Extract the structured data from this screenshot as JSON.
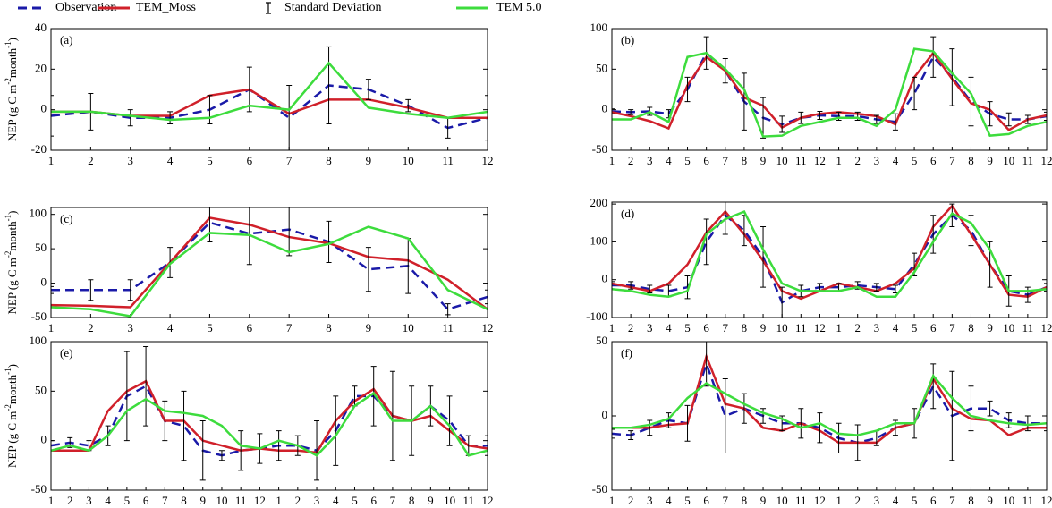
{
  "chart_data": [
    {
      "type": "line",
      "label": "(a)",
      "ylabel": [
        "NEP (g C m",
        "-2",
        "month",
        "-1",
        ")"
      ],
      "categories": [
        "1",
        "2",
        "3",
        "4",
        "5",
        "6",
        "7",
        "8",
        "9",
        "10",
        "11",
        "12"
      ],
      "ylim": [
        -20,
        40
      ],
      "yticks": [
        -20,
        0,
        20,
        40
      ],
      "series": [
        {
          "name": "Observation",
          "color": "#1a1aa8",
          "style": "dashed",
          "values": [
            -3,
            -1,
            -4,
            -4,
            0,
            10,
            -4,
            12,
            10,
            2,
            -9,
            -4
          ]
        },
        {
          "name": "TEM_Moss",
          "color": "#d0202a",
          "style": "solid",
          "values": [
            -1,
            -1,
            -3,
            -3,
            7,
            10,
            -2,
            5,
            5,
            1,
            -4,
            -4
          ]
        },
        {
          "name": "Standard Deviation",
          "color": "#000000",
          "style": "errorbar",
          "values": [
            10,
            9,
            4,
            3,
            7,
            11,
            16,
            19,
            5,
            3,
            5,
            11
          ]
        },
        {
          "name": "TEM 5.0",
          "color": "#3ddc3d",
          "style": "solid",
          "values": [
            -1,
            -1,
            -3,
            -5,
            -4,
            2,
            0,
            23,
            1,
            -2,
            -4,
            -1
          ]
        }
      ]
    },
    {
      "type": "line",
      "label": "(b)",
      "categories": [
        "1",
        "2",
        "3",
        "4",
        "5",
        "6",
        "7",
        "8",
        "9",
        "10",
        "11",
        "12",
        "1",
        "2",
        "3",
        "4",
        "5",
        "6",
        "7",
        "8",
        "9",
        "10",
        "11",
        "12"
      ],
      "ylim": [
        -50,
        100
      ],
      "yticks": [
        -50,
        0,
        50,
        100
      ],
      "series": [
        {
          "name": "Observation",
          "color": "#1a1aa8",
          "style": "dashed",
          "values": [
            -2,
            -3,
            -2,
            -5,
            25,
            70,
            48,
            10,
            -10,
            -18,
            -10,
            -7,
            -8,
            -8,
            -12,
            -15,
            20,
            65,
            40,
            10,
            -5,
            -12,
            -12,
            -8
          ]
        },
        {
          "name": "TEM_Moss",
          "color": "#d0202a",
          "style": "solid",
          "values": [
            -3,
            -8,
            -14,
            -23,
            30,
            65,
            48,
            15,
            5,
            -22,
            -10,
            -5,
            -3,
            -5,
            -8,
            -18,
            40,
            70,
            38,
            8,
            0,
            -25,
            -12,
            -7
          ]
        },
        {
          "name": "Standard Deviation",
          "color": "#000000",
          "style": "errorbar",
          "values": [
            3,
            3,
            5,
            5,
            15,
            20,
            15,
            35,
            25,
            10,
            7,
            5,
            5,
            5,
            5,
            10,
            20,
            25,
            35,
            30,
            15,
            8,
            5,
            5
          ]
        },
        {
          "name": "TEM 5.0",
          "color": "#3ddc3d",
          "style": "solid",
          "values": [
            -12,
            -12,
            -3,
            -15,
            65,
            70,
            50,
            25,
            -33,
            -32,
            -20,
            -15,
            -10,
            -10,
            -20,
            0,
            75,
            72,
            45,
            20,
            -32,
            -30,
            -20,
            -15
          ]
        }
      ]
    },
    {
      "type": "line",
      "label": "(c)",
      "ylabel": [
        "NEP (g C m",
        "-2",
        "month",
        "-1",
        ")"
      ],
      "categories": [
        "1",
        "2",
        "3",
        "4",
        "5",
        "6",
        "7",
        "8",
        "9",
        "10",
        "11",
        "12"
      ],
      "ylim": [
        -50,
        110
      ],
      "yticks": [
        -50,
        0,
        50,
        100
      ],
      "series": [
        {
          "name": "Observation",
          "color": "#1a1aa8",
          "style": "dashed",
          "values": [
            -10,
            -10,
            -10,
            30,
            88,
            72,
            78,
            60,
            20,
            25,
            -38,
            -20
          ]
        },
        {
          "name": "TEM_Moss",
          "color": "#d0202a",
          "style": "solid",
          "values": [
            -32,
            -33,
            -35,
            30,
            95,
            85,
            67,
            58,
            38,
            33,
            5,
            -38
          ]
        },
        {
          "name": "Standard Deviation",
          "color": "#000000",
          "style": "errorbar",
          "values": [
            5,
            15,
            15,
            22,
            28,
            45,
            38,
            30,
            32,
            40,
            8,
            10
          ]
        },
        {
          "name": "TEM 5.0",
          "color": "#3ddc3d",
          "style": "solid",
          "values": [
            -35,
            -38,
            -48,
            28,
            73,
            70,
            45,
            57,
            82,
            65,
            -10,
            -38
          ]
        }
      ]
    },
    {
      "type": "line",
      "label": "(d)",
      "categories": [
        "1",
        "2",
        "3",
        "4",
        "5",
        "6",
        "7",
        "8",
        "9",
        "10",
        "11",
        "12",
        "1",
        "2",
        "3",
        "4",
        "5",
        "6",
        "7",
        "8",
        "9",
        "10",
        "11",
        "12"
      ],
      "ylim": [
        -100,
        205
      ],
      "yticks": [
        -100,
        0,
        100,
        200
      ],
      "series": [
        {
          "name": "Observation",
          "color": "#1a1aa8",
          "style": "dashed",
          "values": [
            -15,
            -15,
            -25,
            -30,
            -20,
            100,
            170,
            130,
            60,
            -60,
            -30,
            -20,
            -20,
            -15,
            -20,
            -25,
            40,
            120,
            170,
            130,
            40,
            -30,
            -40,
            -20
          ]
        },
        {
          "name": "TEM_Moss",
          "color": "#d0202a",
          "style": "solid",
          "values": [
            -10,
            -20,
            -30,
            -10,
            40,
            125,
            180,
            120,
            50,
            -30,
            -50,
            -30,
            -10,
            -20,
            -30,
            -10,
            30,
            140,
            195,
            120,
            40,
            -40,
            -45,
            -20
          ]
        },
        {
          "name": "Standard Deviation",
          "color": "#000000",
          "style": "errorbar",
          "values": [
            10,
            10,
            10,
            15,
            30,
            60,
            50,
            40,
            80,
            40,
            15,
            10,
            10,
            10,
            10,
            10,
            30,
            50,
            30,
            40,
            60,
            40,
            20,
            10
          ]
        },
        {
          "name": "TEM 5.0",
          "color": "#3ddc3d",
          "style": "solid",
          "values": [
            -25,
            -30,
            -40,
            -45,
            -30,
            120,
            160,
            180,
            80,
            -10,
            -30,
            -30,
            -30,
            -20,
            -45,
            -45,
            20,
            100,
            175,
            150,
            80,
            -30,
            -30,
            -25
          ]
        }
      ]
    },
    {
      "type": "line",
      "label": "(e)",
      "ylabel": [
        "NEP (g C m",
        "-2",
        "month",
        "-1",
        ")"
      ],
      "categories": [
        "1",
        "2",
        "3",
        "4",
        "5",
        "6",
        "7",
        "8",
        "9",
        "10",
        "11",
        "12",
        "1",
        "2",
        "3",
        "4",
        "5",
        "6",
        "7",
        "8",
        "9",
        "10",
        "11",
        "12"
      ],
      "ylim": [
        -50,
        100
      ],
      "yticks": [
        -50,
        0,
        50,
        100
      ],
      "series": [
        {
          "name": "Observation",
          "color": "#1a1aa8",
          "style": "dashed",
          "values": [
            -5,
            -2,
            -5,
            5,
            45,
            55,
            20,
            15,
            -10,
            -15,
            -10,
            -8,
            -5,
            -5,
            -10,
            10,
            45,
            45,
            25,
            20,
            35,
            20,
            -5,
            -5
          ]
        },
        {
          "name": "TEM_Moss",
          "color": "#d0202a",
          "style": "solid",
          "values": [
            -10,
            -10,
            -10,
            30,
            50,
            60,
            20,
            20,
            0,
            -5,
            -10,
            -8,
            -10,
            -10,
            -12,
            20,
            40,
            52,
            25,
            20,
            25,
            10,
            -5,
            -8
          ]
        },
        {
          "name": "Standard Deviation",
          "color": "#000000",
          "style": "errorbar",
          "values": [
            5,
            5,
            5,
            10,
            45,
            40,
            20,
            35,
            30,
            5,
            20,
            15,
            15,
            10,
            30,
            35,
            10,
            30,
            45,
            35,
            20,
            25,
            10,
            10
          ]
        },
        {
          "name": "TEM 5.0",
          "color": "#3ddc3d",
          "style": "solid",
          "values": [
            -10,
            -5,
            -10,
            5,
            30,
            42,
            30,
            28,
            25,
            15,
            -5,
            -8,
            0,
            -5,
            -15,
            5,
            35,
            48,
            20,
            20,
            35,
            15,
            -15,
            -10
          ]
        }
      ]
    },
    {
      "type": "line",
      "label": "(f)",
      "categories": [
        "1",
        "2",
        "3",
        "4",
        "5",
        "6",
        "7",
        "8",
        "9",
        "10",
        "11",
        "12",
        "1",
        "2",
        "3",
        "4",
        "5",
        "6",
        "7",
        "8",
        "9",
        "10",
        "11",
        "12"
      ],
      "ylim": [
        -50,
        50
      ],
      "yticks": [
        -50,
        0,
        50
      ],
      "series": [
        {
          "name": "Observation",
          "color": "#1a1aa8",
          "style": "dashed",
          "values": [
            -12,
            -13,
            -8,
            -3,
            -5,
            35,
            0,
            5,
            0,
            -5,
            -5,
            -8,
            -15,
            -18,
            -15,
            -8,
            -5,
            20,
            0,
            5,
            5,
            -3,
            -5,
            -5
          ]
        },
        {
          "name": "TEM_Moss",
          "color": "#d0202a",
          "style": "solid",
          "values": [
            -8,
            -8,
            -8,
            -6,
            -5,
            40,
            8,
            5,
            -8,
            -10,
            -5,
            -10,
            -18,
            -18,
            -18,
            -8,
            -5,
            25,
            5,
            -2,
            -3,
            -13,
            -8,
            -8
          ]
        },
        {
          "name": "Standard Deviation",
          "color": "#000000",
          "style": "errorbar",
          "values": [
            3,
            3,
            5,
            5,
            12,
            15,
            25,
            10,
            5,
            5,
            10,
            10,
            10,
            12,
            5,
            5,
            10,
            15,
            30,
            15,
            5,
            5,
            5,
            5
          ]
        },
        {
          "name": "TEM 5.0",
          "color": "#3ddc3d",
          "style": "solid",
          "values": [
            -8,
            -8,
            -6,
            -2,
            12,
            22,
            15,
            8,
            2,
            -2,
            -8,
            -5,
            -12,
            -13,
            -10,
            -5,
            -5,
            27,
            12,
            0,
            -3,
            -5,
            -6,
            -5
          ]
        }
      ]
    }
  ]
}
